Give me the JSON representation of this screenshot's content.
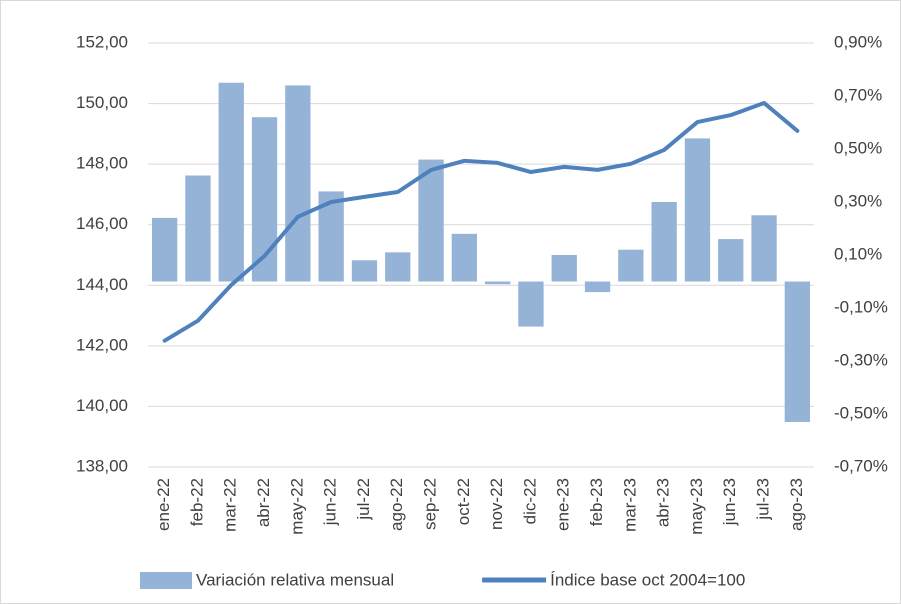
{
  "chart_data": {
    "type": "combo",
    "categories": [
      "ene-22",
      "feb-22",
      "mar-22",
      "abr-22",
      "may-22",
      "jun-22",
      "jul-22",
      "ago-22",
      "sep-22",
      "oct-22",
      "nov-22",
      "dic-22",
      "ene-23",
      "feb-23",
      "mar-23",
      "abr-23",
      "may-23",
      "jun-23",
      "jul-23",
      "ago-23"
    ],
    "series": [
      {
        "name": "Variación relativa mensual",
        "type": "bar",
        "axis": "y2",
        "color": "#95b3d7",
        "values": [
          0.24,
          0.4,
          0.75,
          0.62,
          0.74,
          0.34,
          0.08,
          0.11,
          0.46,
          0.18,
          -0.01,
          -0.17,
          0.1,
          -0.04,
          0.12,
          0.3,
          0.54,
          0.16,
          0.25,
          -0.53
        ]
      },
      {
        "name": "Índice base oct 2004=100",
        "type": "line",
        "color": "#4f81bd",
        "values": [
          142.17,
          142.83,
          144.01,
          144.97,
          146.26,
          146.75,
          146.92,
          147.08,
          147.81,
          148.11,
          148.04,
          147.74,
          147.91,
          147.81,
          148.01,
          148.47,
          149.39,
          149.62,
          150.02,
          149.1
        ]
      }
    ],
    "ylim": [
      138,
      152
    ],
    "yticks": [
      {
        "value": 138,
        "label": "138,00"
      },
      {
        "value": 140,
        "label": "140,00"
      },
      {
        "value": 142,
        "label": "142,00"
      },
      {
        "value": 144,
        "label": "144,00"
      },
      {
        "value": 146,
        "label": "146,00"
      },
      {
        "value": 148,
        "label": "148,00"
      },
      {
        "value": 150,
        "label": "150,00"
      },
      {
        "value": 152,
        "label": "152,00"
      }
    ],
    "y2lim": [
      -0.7,
      0.9
    ],
    "y2ticks": [
      {
        "value": -0.7,
        "label": "-0,70%"
      },
      {
        "value": -0.5,
        "label": "-0,50%"
      },
      {
        "value": -0.3,
        "label": "-0,30%"
      },
      {
        "value": -0.1,
        "label": "-0,10%"
      },
      {
        "value": 0.1,
        "label": "0,10%"
      },
      {
        "value": 0.3,
        "label": "0,30%"
      },
      {
        "value": 0.5,
        "label": "0,50%"
      },
      {
        "value": 0.7,
        "label": "0,70%"
      },
      {
        "value": 0.9,
        "label": "0,90%"
      }
    ],
    "grid": true,
    "legend": "bottom"
  }
}
